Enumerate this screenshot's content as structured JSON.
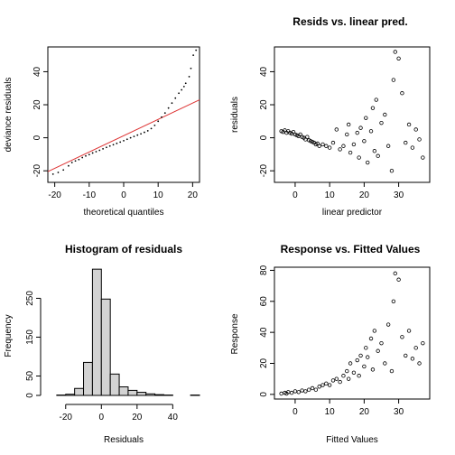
{
  "chart_data": [
    {
      "type": "scatter",
      "title": "",
      "xlabel": "theoretical quantiles",
      "ylabel": "deviance residuals",
      "xlim": [
        -22,
        22
      ],
      "ylim": [
        -27,
        55
      ],
      "xticks": [
        -20,
        -10,
        0,
        10,
        20
      ],
      "yticks": [
        -20,
        0,
        20,
        40
      ],
      "point_color": "#000000",
      "reference_line": {
        "color": "#dd3333",
        "from": [
          -22,
          -20.5
        ],
        "to": [
          22,
          23
        ]
      },
      "points": [
        [
          -20.5,
          -22
        ],
        [
          -19,
          -21
        ],
        [
          -17.5,
          -19.5
        ],
        [
          -16,
          -17
        ],
        [
          -15,
          -15
        ],
        [
          -14,
          -14
        ],
        [
          -13,
          -13.2
        ],
        [
          -12,
          -12
        ],
        [
          -11,
          -11
        ],
        [
          -10,
          -10.2
        ],
        [
          -9,
          -9.2
        ],
        [
          -8,
          -8.4
        ],
        [
          -7,
          -7.6
        ],
        [
          -6,
          -6.7
        ],
        [
          -5,
          -5.8
        ],
        [
          -4,
          -5
        ],
        [
          -3,
          -4.2
        ],
        [
          -2,
          -3.4
        ],
        [
          -1,
          -2.6
        ],
        [
          0,
          -1.8
        ],
        [
          1,
          -0.9
        ],
        [
          2,
          0
        ],
        [
          3,
          0.8
        ],
        [
          4,
          1.6
        ],
        [
          5,
          2.4
        ],
        [
          6,
          3.3
        ],
        [
          7,
          4.2
        ],
        [
          8,
          5.6
        ],
        [
          9,
          7.5
        ],
        [
          10,
          10
        ],
        [
          11,
          12.5
        ],
        [
          12,
          15
        ],
        [
          13,
          18
        ],
        [
          14,
          21
        ],
        [
          15,
          24
        ],
        [
          16,
          27
        ],
        [
          16.8,
          29
        ],
        [
          17.5,
          31
        ],
        [
          18,
          33
        ],
        [
          19,
          37
        ],
        [
          19.5,
          42
        ],
        [
          20.2,
          50
        ],
        [
          21,
          53
        ]
      ]
    },
    {
      "type": "scatter",
      "title": "Resids vs. linear pred.",
      "xlabel": "linear predictor",
      "ylabel": "residuals",
      "xlim": [
        -6,
        39
      ],
      "ylim": [
        -27,
        55
      ],
      "xticks": [
        0,
        10,
        20,
        30
      ],
      "yticks": [
        -20,
        0,
        20,
        40
      ],
      "marker": "open-circle",
      "points": [
        [
          -4,
          4
        ],
        [
          -3.5,
          3.5
        ],
        [
          -3,
          4.5
        ],
        [
          -2.5,
          3
        ],
        [
          -2,
          4
        ],
        [
          -1.5,
          3
        ],
        [
          -1,
          2.5
        ],
        [
          -0.5,
          3.5
        ],
        [
          0,
          2
        ],
        [
          0.5,
          1.5
        ],
        [
          1,
          1
        ],
        [
          1.5,
          2
        ],
        [
          2,
          0.5
        ],
        [
          2.5,
          0
        ],
        [
          3,
          -1
        ],
        [
          3.5,
          0.5
        ],
        [
          4,
          -1.5
        ],
        [
          4.5,
          -2
        ],
        [
          5,
          -2.5
        ],
        [
          5.5,
          -3
        ],
        [
          6,
          -4
        ],
        [
          6.5,
          -3.5
        ],
        [
          7,
          -5
        ],
        [
          8,
          -4
        ],
        [
          9,
          -5
        ],
        [
          10,
          -6
        ],
        [
          11,
          -3
        ],
        [
          12,
          5
        ],
        [
          13,
          -7
        ],
        [
          14,
          -5
        ],
        [
          15,
          2
        ],
        [
          15.5,
          8
        ],
        [
          16,
          -9
        ],
        [
          17,
          -4
        ],
        [
          18,
          3
        ],
        [
          18.5,
          -12
        ],
        [
          19,
          6
        ],
        [
          20,
          -2
        ],
        [
          20.5,
          12
        ],
        [
          21,
          -15
        ],
        [
          22,
          4
        ],
        [
          22.5,
          18
        ],
        [
          23,
          -8
        ],
        [
          23.5,
          23
        ],
        [
          24,
          -11
        ],
        [
          25,
          9
        ],
        [
          26,
          14
        ],
        [
          27,
          -5
        ],
        [
          28,
          -20
        ],
        [
          28.5,
          35
        ],
        [
          29,
          52
        ],
        [
          30,
          48
        ],
        [
          31,
          27
        ],
        [
          32,
          -3
        ],
        [
          33,
          8
        ],
        [
          34,
          -6
        ],
        [
          35,
          5
        ],
        [
          36,
          -1
        ],
        [
          37,
          -12
        ]
      ]
    },
    {
      "type": "bar",
      "title": "Histogram of residuals",
      "xlabel": "Residuals",
      "ylabel": "Frequency",
      "xlim": [
        -30,
        55
      ],
      "ylim": [
        0,
        330
      ],
      "xticks": [
        -20,
        0,
        20,
        40
      ],
      "yticks": [
        0,
        50,
        150,
        250
      ],
      "bar_fill": "#d3d3d3",
      "bins": [
        [
          -25,
          -20,
          1
        ],
        [
          -20,
          -15,
          3
        ],
        [
          -15,
          -10,
          18
        ],
        [
          -10,
          -5,
          85
        ],
        [
          -5,
          0,
          325
        ],
        [
          0,
          5,
          248
        ],
        [
          5,
          10,
          55
        ],
        [
          10,
          15,
          22
        ],
        [
          15,
          20,
          13
        ],
        [
          20,
          25,
          8
        ],
        [
          25,
          30,
          4
        ],
        [
          30,
          35,
          2
        ],
        [
          35,
          40,
          1
        ],
        [
          40,
          45,
          0
        ],
        [
          45,
          50,
          0
        ],
        [
          50,
          55,
          1
        ]
      ]
    },
    {
      "type": "scatter",
      "title": "Response vs. Fitted Values",
      "xlabel": "Fitted Values",
      "ylabel": "Response",
      "xlim": [
        -6,
        39
      ],
      "ylim": [
        -3,
        82
      ],
      "xticks": [
        0,
        10,
        20,
        30
      ],
      "yticks": [
        0,
        20,
        40,
        60,
        80
      ],
      "marker": "open-circle",
      "points": [
        [
          -4,
          0.5
        ],
        [
          -3,
          1
        ],
        [
          -2.5,
          0.5
        ],
        [
          -2,
          1.5
        ],
        [
          -1,
          1
        ],
        [
          0,
          2
        ],
        [
          1,
          1.5
        ],
        [
          2,
          2.5
        ],
        [
          3,
          2
        ],
        [
          4,
          3
        ],
        [
          5,
          4
        ],
        [
          6,
          3
        ],
        [
          7,
          5
        ],
        [
          8,
          6
        ],
        [
          9,
          7
        ],
        [
          10,
          6
        ],
        [
          11,
          9
        ],
        [
          12,
          10
        ],
        [
          13,
          8
        ],
        [
          14,
          12
        ],
        [
          15,
          15
        ],
        [
          15.5,
          10
        ],
        [
          16,
          20
        ],
        [
          17,
          14
        ],
        [
          18,
          22
        ],
        [
          18.5,
          12
        ],
        [
          19,
          25
        ],
        [
          20,
          18
        ],
        [
          20.5,
          30
        ],
        [
          21,
          24
        ],
        [
          22,
          36
        ],
        [
          22.5,
          16
        ],
        [
          23,
          41
        ],
        [
          24,
          28
        ],
        [
          25,
          33
        ],
        [
          26,
          20
        ],
        [
          27,
          45
        ],
        [
          28,
          15
        ],
        [
          28.5,
          60
        ],
        [
          29,
          78
        ],
        [
          30,
          74
        ],
        [
          31,
          37
        ],
        [
          32,
          25
        ],
        [
          33,
          41
        ],
        [
          34,
          23
        ],
        [
          35,
          30
        ],
        [
          36,
          20
        ],
        [
          37,
          33
        ]
      ]
    }
  ]
}
